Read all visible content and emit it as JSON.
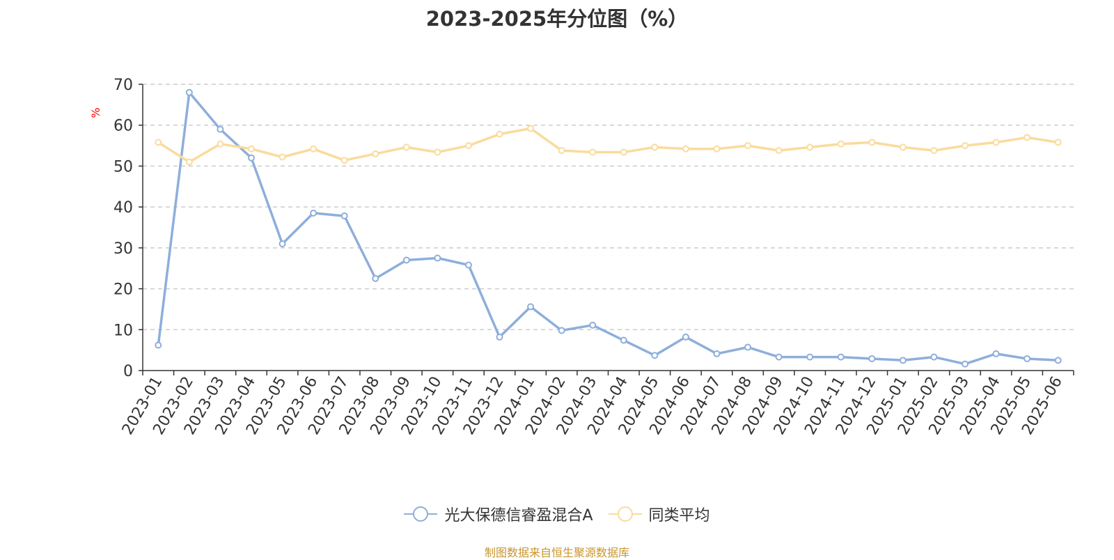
{
  "title": "2023-2025年分位图（%）",
  "source_note": "制图数据来自恒生聚源数据库",
  "colors": {
    "series_a": "#8eaedb",
    "series_b": "#fadb9c",
    "grid": "#cccccc",
    "axis": "#333333",
    "unit": "#ff0000"
  },
  "chart_data": {
    "type": "line",
    "title": "2023-2025年分位图（%）",
    "ylabel": "%",
    "ylim": [
      0,
      70
    ],
    "yticks": [
      0,
      10,
      20,
      30,
      40,
      50,
      60,
      70
    ],
    "grid": true,
    "legend_position": "bottom",
    "x": [
      "2023-01",
      "2023-02",
      "2023-03",
      "2023-04",
      "2023-05",
      "2023-06",
      "2023-07",
      "2023-08",
      "2023-09",
      "2023-10",
      "2023-11",
      "2023-12",
      "2024-01",
      "2024-02",
      "2024-03",
      "2024-04",
      "2024-05",
      "2024-06",
      "2024-07",
      "2024-08",
      "2024-09",
      "2024-10",
      "2024-11",
      "2024-12",
      "2025-01",
      "2025-02",
      "2025-03",
      "2025-04",
      "2025-05",
      "2025-06"
    ],
    "series": [
      {
        "name": "光大保德信睿盈混合A",
        "color": "#8eaedb",
        "values": [
          6.2,
          68.0,
          59.0,
          52.0,
          31.0,
          38.5,
          37.8,
          22.5,
          27.0,
          27.5,
          25.8,
          8.2,
          15.6,
          9.8,
          11.1,
          7.4,
          3.7,
          8.2,
          4.1,
          5.7,
          3.3,
          3.3,
          3.3,
          2.9,
          2.5,
          3.3,
          1.6,
          4.1,
          2.9,
          2.5
        ]
      },
      {
        "name": "同类平均",
        "color": "#fadb9c",
        "values": [
          55.8,
          51.0,
          55.4,
          54.2,
          52.2,
          54.2,
          51.4,
          53.0,
          54.6,
          53.4,
          55.0,
          57.8,
          59.2,
          53.8,
          53.4,
          53.4,
          54.6,
          54.2,
          54.2,
          55.0,
          53.8,
          54.6,
          55.4,
          55.8,
          54.6,
          53.8,
          55.0,
          55.8,
          57.0,
          55.8
        ]
      }
    ]
  }
}
